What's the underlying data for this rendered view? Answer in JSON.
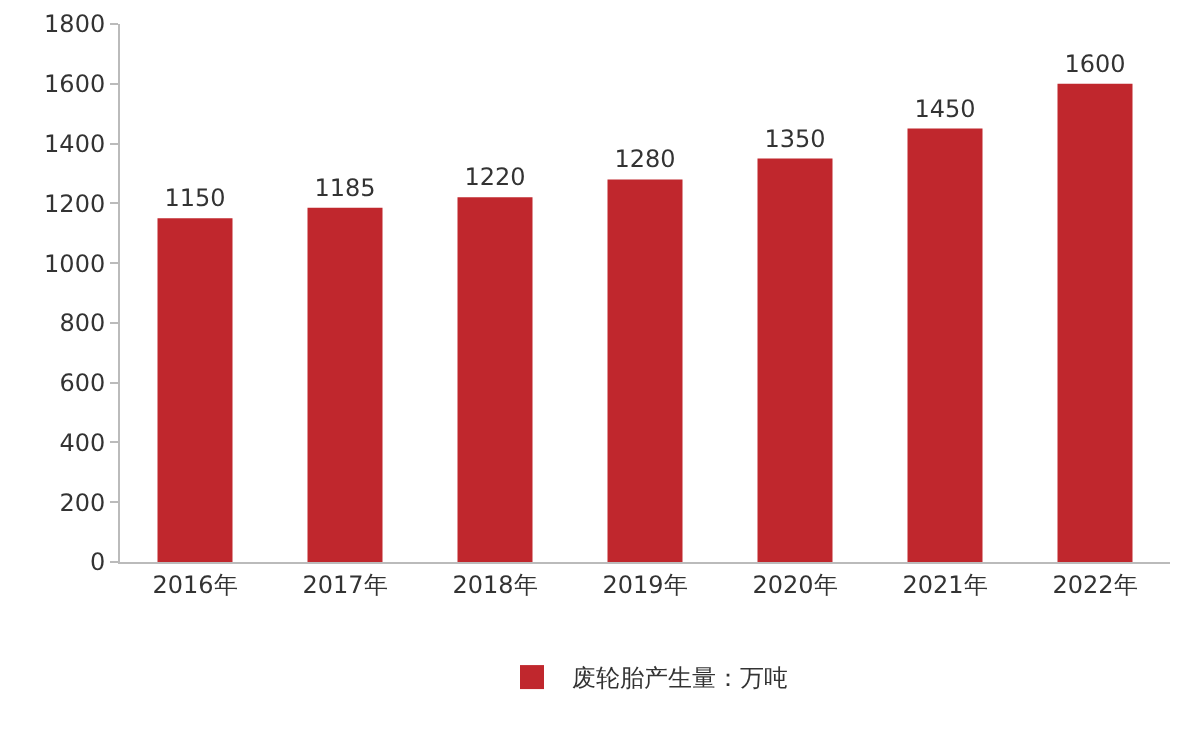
{
  "chart_data": {
    "type": "bar",
    "categories": [
      "2016年",
      "2017年",
      "2018年",
      "2019年",
      "2020年",
      "2021年",
      "2022年"
    ],
    "series": [
      {
        "name": "废轮胎产生量：万吨",
        "color": "#c0272d",
        "values": [
          1150,
          1185,
          1220,
          1280,
          1350,
          1450,
          1600
        ]
      }
    ],
    "ylim": [
      0,
      1800
    ],
    "yticks": [
      0,
      200,
      400,
      600,
      800,
      1000,
      1200,
      1400,
      1600,
      1800
    ],
    "grid": false,
    "legend": "bottom",
    "data_labels": true
  }
}
